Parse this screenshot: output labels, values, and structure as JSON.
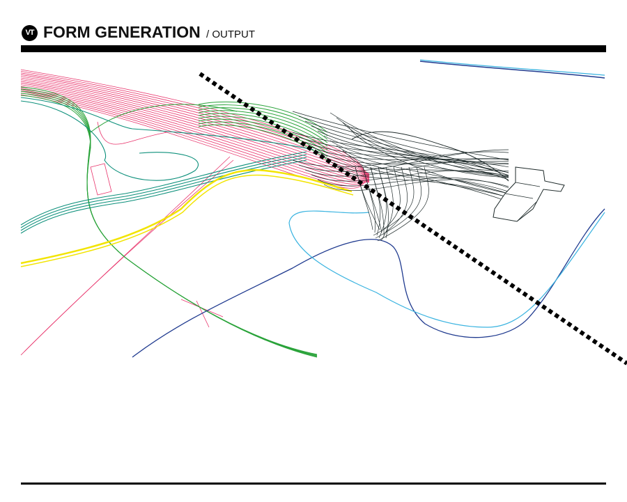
{
  "header": {
    "logo_text": "VT",
    "title": "FORM GENERATION",
    "subtitle": "/ OUTPUT"
  },
  "colors": {
    "pink": "#e8336b",
    "green": "#2aa33a",
    "teal": "#0b8f7a",
    "yellow": "#f2e400",
    "navy": "#1f3a8f",
    "light_blue": "#39b3e0",
    "dark": "#1e2a2a",
    "divider": "#000000"
  }
}
